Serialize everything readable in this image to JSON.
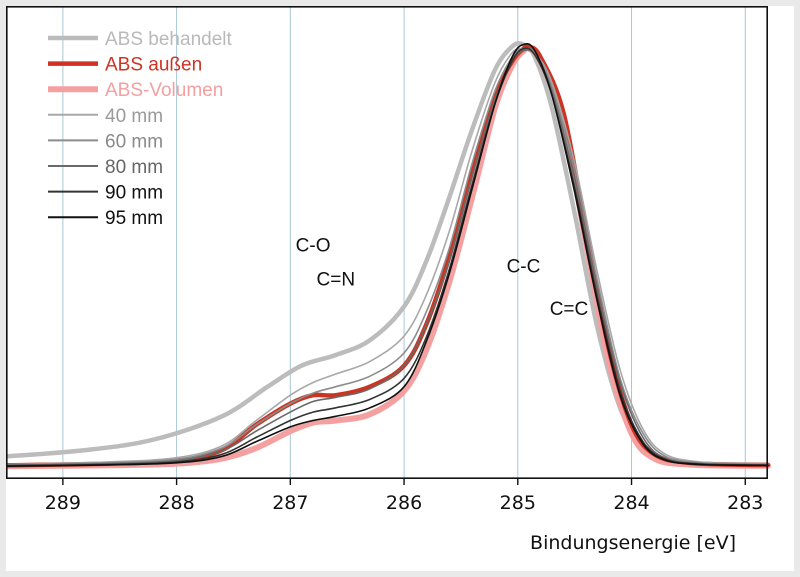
{
  "chart_data": {
    "type": "line",
    "xlabel": "Bindungsenergie [eV]",
    "ylabel": "",
    "xlim": [
      289.5,
      282.8
    ],
    "x_reversed": true,
    "ylim": [
      0,
      1.02
    ],
    "grid": "vertical",
    "legend_position": "top-left",
    "x_ticks": [
      "289",
      "288",
      "287",
      "286",
      "285",
      "284",
      "283"
    ],
    "series": [
      {
        "name": "ABS behandelt",
        "color": "#bcbcbc",
        "width": 4.5,
        "x": [
          289.5,
          288.8,
          288.2,
          287.6,
          287.2,
          286.9,
          286.6,
          286.3,
          286.0,
          285.8,
          285.6,
          285.4,
          285.2,
          285.05,
          284.95,
          284.85,
          284.7,
          284.5,
          284.3,
          284.1,
          283.9,
          283.7,
          283.4,
          283.0,
          282.8
        ],
        "y": [
          0.025,
          0.04,
          0.065,
          0.12,
          0.19,
          0.24,
          0.265,
          0.3,
          0.38,
          0.49,
          0.64,
          0.8,
          0.94,
          0.995,
          1.0,
          0.97,
          0.85,
          0.6,
          0.33,
          0.14,
          0.05,
          0.015,
          0.008,
          0.006,
          0.005
        ]
      },
      {
        "name": "ABS außen",
        "color": "#cc3322",
        "width": 4.5,
        "x": [
          289.5,
          288.6,
          288.0,
          287.6,
          287.3,
          287.0,
          286.8,
          286.6,
          286.3,
          286.0,
          285.8,
          285.6,
          285.4,
          285.2,
          285.05,
          284.95,
          284.9,
          284.8,
          284.6,
          284.4,
          284.2,
          284.0,
          283.8,
          283.5,
          283.0,
          282.8
        ],
        "y": [
          0.004,
          0.008,
          0.015,
          0.04,
          0.1,
          0.15,
          0.17,
          0.17,
          0.19,
          0.24,
          0.34,
          0.5,
          0.7,
          0.88,
          0.96,
          0.99,
          0.995,
          0.97,
          0.84,
          0.56,
          0.28,
          0.1,
          0.03,
          0.01,
          0.005,
          0.005
        ]
      },
      {
        "name": "ABS-Volumen",
        "color": "#f5a0a0",
        "width": 6,
        "x": [
          289.5,
          288.6,
          288.0,
          287.6,
          287.3,
          287.0,
          286.8,
          286.6,
          286.3,
          286.0,
          285.8,
          285.6,
          285.4,
          285.2,
          285.05,
          284.95,
          284.9,
          284.8,
          284.6,
          284.4,
          284.2,
          284.0,
          283.8,
          283.5,
          283.0,
          282.8
        ],
        "y": [
          0.002,
          0.004,
          0.008,
          0.02,
          0.045,
          0.085,
          0.105,
          0.11,
          0.125,
          0.18,
          0.28,
          0.44,
          0.64,
          0.85,
          0.95,
          0.985,
          0.99,
          0.96,
          0.82,
          0.53,
          0.25,
          0.08,
          0.02,
          0.006,
          0.003,
          0.003
        ]
      },
      {
        "name": "40 mm",
        "color": "#a8a8a8",
        "width": 1.6,
        "x": [
          289.5,
          288.6,
          288.0,
          287.6,
          287.3,
          287.0,
          286.8,
          286.6,
          286.3,
          286.0,
          285.8,
          285.6,
          285.4,
          285.2,
          285.05,
          284.95,
          284.85,
          284.7,
          284.5,
          284.3,
          284.1,
          283.9,
          283.7,
          283.4,
          283.0,
          282.8
        ],
        "y": [
          0.006,
          0.012,
          0.022,
          0.05,
          0.11,
          0.17,
          0.2,
          0.22,
          0.25,
          0.31,
          0.41,
          0.56,
          0.75,
          0.91,
          0.98,
          0.99,
          0.98,
          0.91,
          0.72,
          0.46,
          0.23,
          0.09,
          0.03,
          0.012,
          0.008,
          0.007
        ]
      },
      {
        "name": "60 mm",
        "color": "#8c8c8c",
        "width": 1.6,
        "x": [
          289.5,
          288.6,
          288.0,
          287.6,
          287.3,
          287.0,
          286.8,
          286.6,
          286.3,
          286.0,
          285.8,
          285.6,
          285.4,
          285.2,
          285.05,
          284.95,
          284.85,
          284.7,
          284.5,
          284.3,
          284.1,
          283.9,
          283.7,
          283.4,
          283.0,
          282.8
        ],
        "y": [
          0.005,
          0.01,
          0.018,
          0.045,
          0.1,
          0.15,
          0.175,
          0.19,
          0.215,
          0.27,
          0.37,
          0.52,
          0.72,
          0.89,
          0.97,
          0.99,
          0.98,
          0.9,
          0.7,
          0.44,
          0.21,
          0.08,
          0.025,
          0.01,
          0.007,
          0.006
        ]
      },
      {
        "name": "80 mm",
        "color": "#6a6a6a",
        "width": 1.6,
        "x": [
          289.5,
          288.6,
          288.0,
          287.6,
          287.3,
          287.0,
          286.8,
          286.6,
          286.3,
          286.0,
          285.8,
          285.6,
          285.4,
          285.2,
          285.05,
          284.95,
          284.85,
          284.7,
          284.5,
          284.3,
          284.1,
          283.9,
          283.7,
          283.4,
          283.0,
          282.8
        ],
        "y": [
          0.004,
          0.008,
          0.015,
          0.038,
          0.085,
          0.13,
          0.155,
          0.165,
          0.185,
          0.24,
          0.34,
          0.49,
          0.69,
          0.87,
          0.96,
          0.985,
          0.975,
          0.89,
          0.68,
          0.42,
          0.2,
          0.07,
          0.02,
          0.008,
          0.006,
          0.005
        ]
      },
      {
        "name": "90 mm",
        "color": "#333333",
        "width": 1.6,
        "x": [
          289.5,
          288.6,
          288.0,
          287.6,
          287.3,
          287.0,
          286.8,
          286.6,
          286.3,
          286.0,
          285.8,
          285.6,
          285.4,
          285.2,
          285.05,
          284.95,
          284.85,
          284.7,
          284.5,
          284.3,
          284.1,
          283.9,
          283.7,
          283.4,
          283.0,
          282.8
        ],
        "y": [
          0.003,
          0.006,
          0.012,
          0.03,
          0.07,
          0.11,
          0.13,
          0.14,
          0.16,
          0.21,
          0.31,
          0.47,
          0.67,
          0.86,
          0.96,
          0.99,
          0.975,
          0.88,
          0.66,
          0.4,
          0.18,
          0.06,
          0.018,
          0.007,
          0.005,
          0.004
        ]
      },
      {
        "name": "95 mm",
        "color": "#111111",
        "width": 1.6,
        "x": [
          289.5,
          288.6,
          288.0,
          287.6,
          287.3,
          287.0,
          286.8,
          286.6,
          286.3,
          286.0,
          285.8,
          285.6,
          285.4,
          285.2,
          285.05,
          284.95,
          284.85,
          284.7,
          284.5,
          284.3,
          284.1,
          283.9,
          283.7,
          283.4,
          283.0,
          282.8
        ],
        "y": [
          0.002,
          0.005,
          0.01,
          0.025,
          0.06,
          0.095,
          0.11,
          0.12,
          0.14,
          0.19,
          0.3,
          0.46,
          0.66,
          0.86,
          0.97,
          1.0,
          0.985,
          0.88,
          0.65,
          0.39,
          0.17,
          0.055,
          0.016,
          0.006,
          0.004,
          0.004
        ]
      }
    ],
    "annotations": [
      {
        "text": "C-O",
        "x": 286.8,
        "y": 0.51
      },
      {
        "text": "C=N",
        "x": 286.6,
        "y": 0.43
      },
      {
        "text": "C-C",
        "x": 284.95,
        "y": 0.46
      },
      {
        "text": "C=C",
        "x": 284.55,
        "y": 0.36
      }
    ]
  }
}
